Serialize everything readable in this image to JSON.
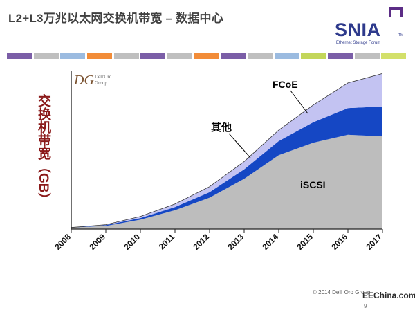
{
  "slide": {
    "title": "L2+L3万兆以太网交换机带宽 – 数据中心",
    "logo_text": "SNIA",
    "logo_tm": "TM",
    "logo_sub": "Ethernet Storage Forum",
    "dg_mark": "DG",
    "dg_name1": "Dell'Oro",
    "dg_name2": "Group",
    "footer": "© 2014 Dell' Oro Group",
    "watermark": "EEChina.com",
    "page_number": "9",
    "colors": {
      "title": "#404040",
      "ytitle": "#8b1a1a",
      "iscsi": "#bdbdbd",
      "other": "#1547c4",
      "fcoe": "#c3c3f2"
    },
    "swatch_colors": [
      "#7b5ea7",
      "#bfbfbf",
      "#9bbbe0",
      "#f28c38",
      "#bfbfbf",
      "#7b5ea7",
      "#bfbfbf",
      "#f28c38",
      "#7b5ea7",
      "#bfbfbf",
      "#9bbbe0",
      "#c3d65a",
      "#7b5ea7",
      "#bfbfbf",
      "#d3e06a"
    ]
  },
  "chart_data": {
    "type": "area",
    "stacked": true,
    "title": "",
    "xlabel": "",
    "ylabel": "交换机带宽（GB）",
    "x": [
      "2008",
      "2009",
      "2010",
      "2011",
      "2012",
      "2013",
      "2014",
      "2015",
      "2016",
      "2017"
    ],
    "ylim": [
      0,
      100
    ],
    "series": [
      {
        "name": "iSCSI",
        "values": [
          1,
          2,
          6,
          12,
          20,
          32,
          47,
          55,
          60,
          59
        ]
      },
      {
        "name": "其他",
        "values": [
          0,
          0.5,
          1,
          2,
          3.5,
          6,
          9,
          13,
          17,
          19
        ]
      },
      {
        "name": "FCoE",
        "values": [
          0,
          0.3,
          1,
          2,
          3.5,
          5,
          7,
          11,
          16,
          21
        ]
      }
    ],
    "annotations": [
      {
        "text": "FCoE",
        "series": "FCoE"
      },
      {
        "text": "其他",
        "series": "其他"
      },
      {
        "text": "iSCSI",
        "series": "iSCSI"
      }
    ]
  }
}
